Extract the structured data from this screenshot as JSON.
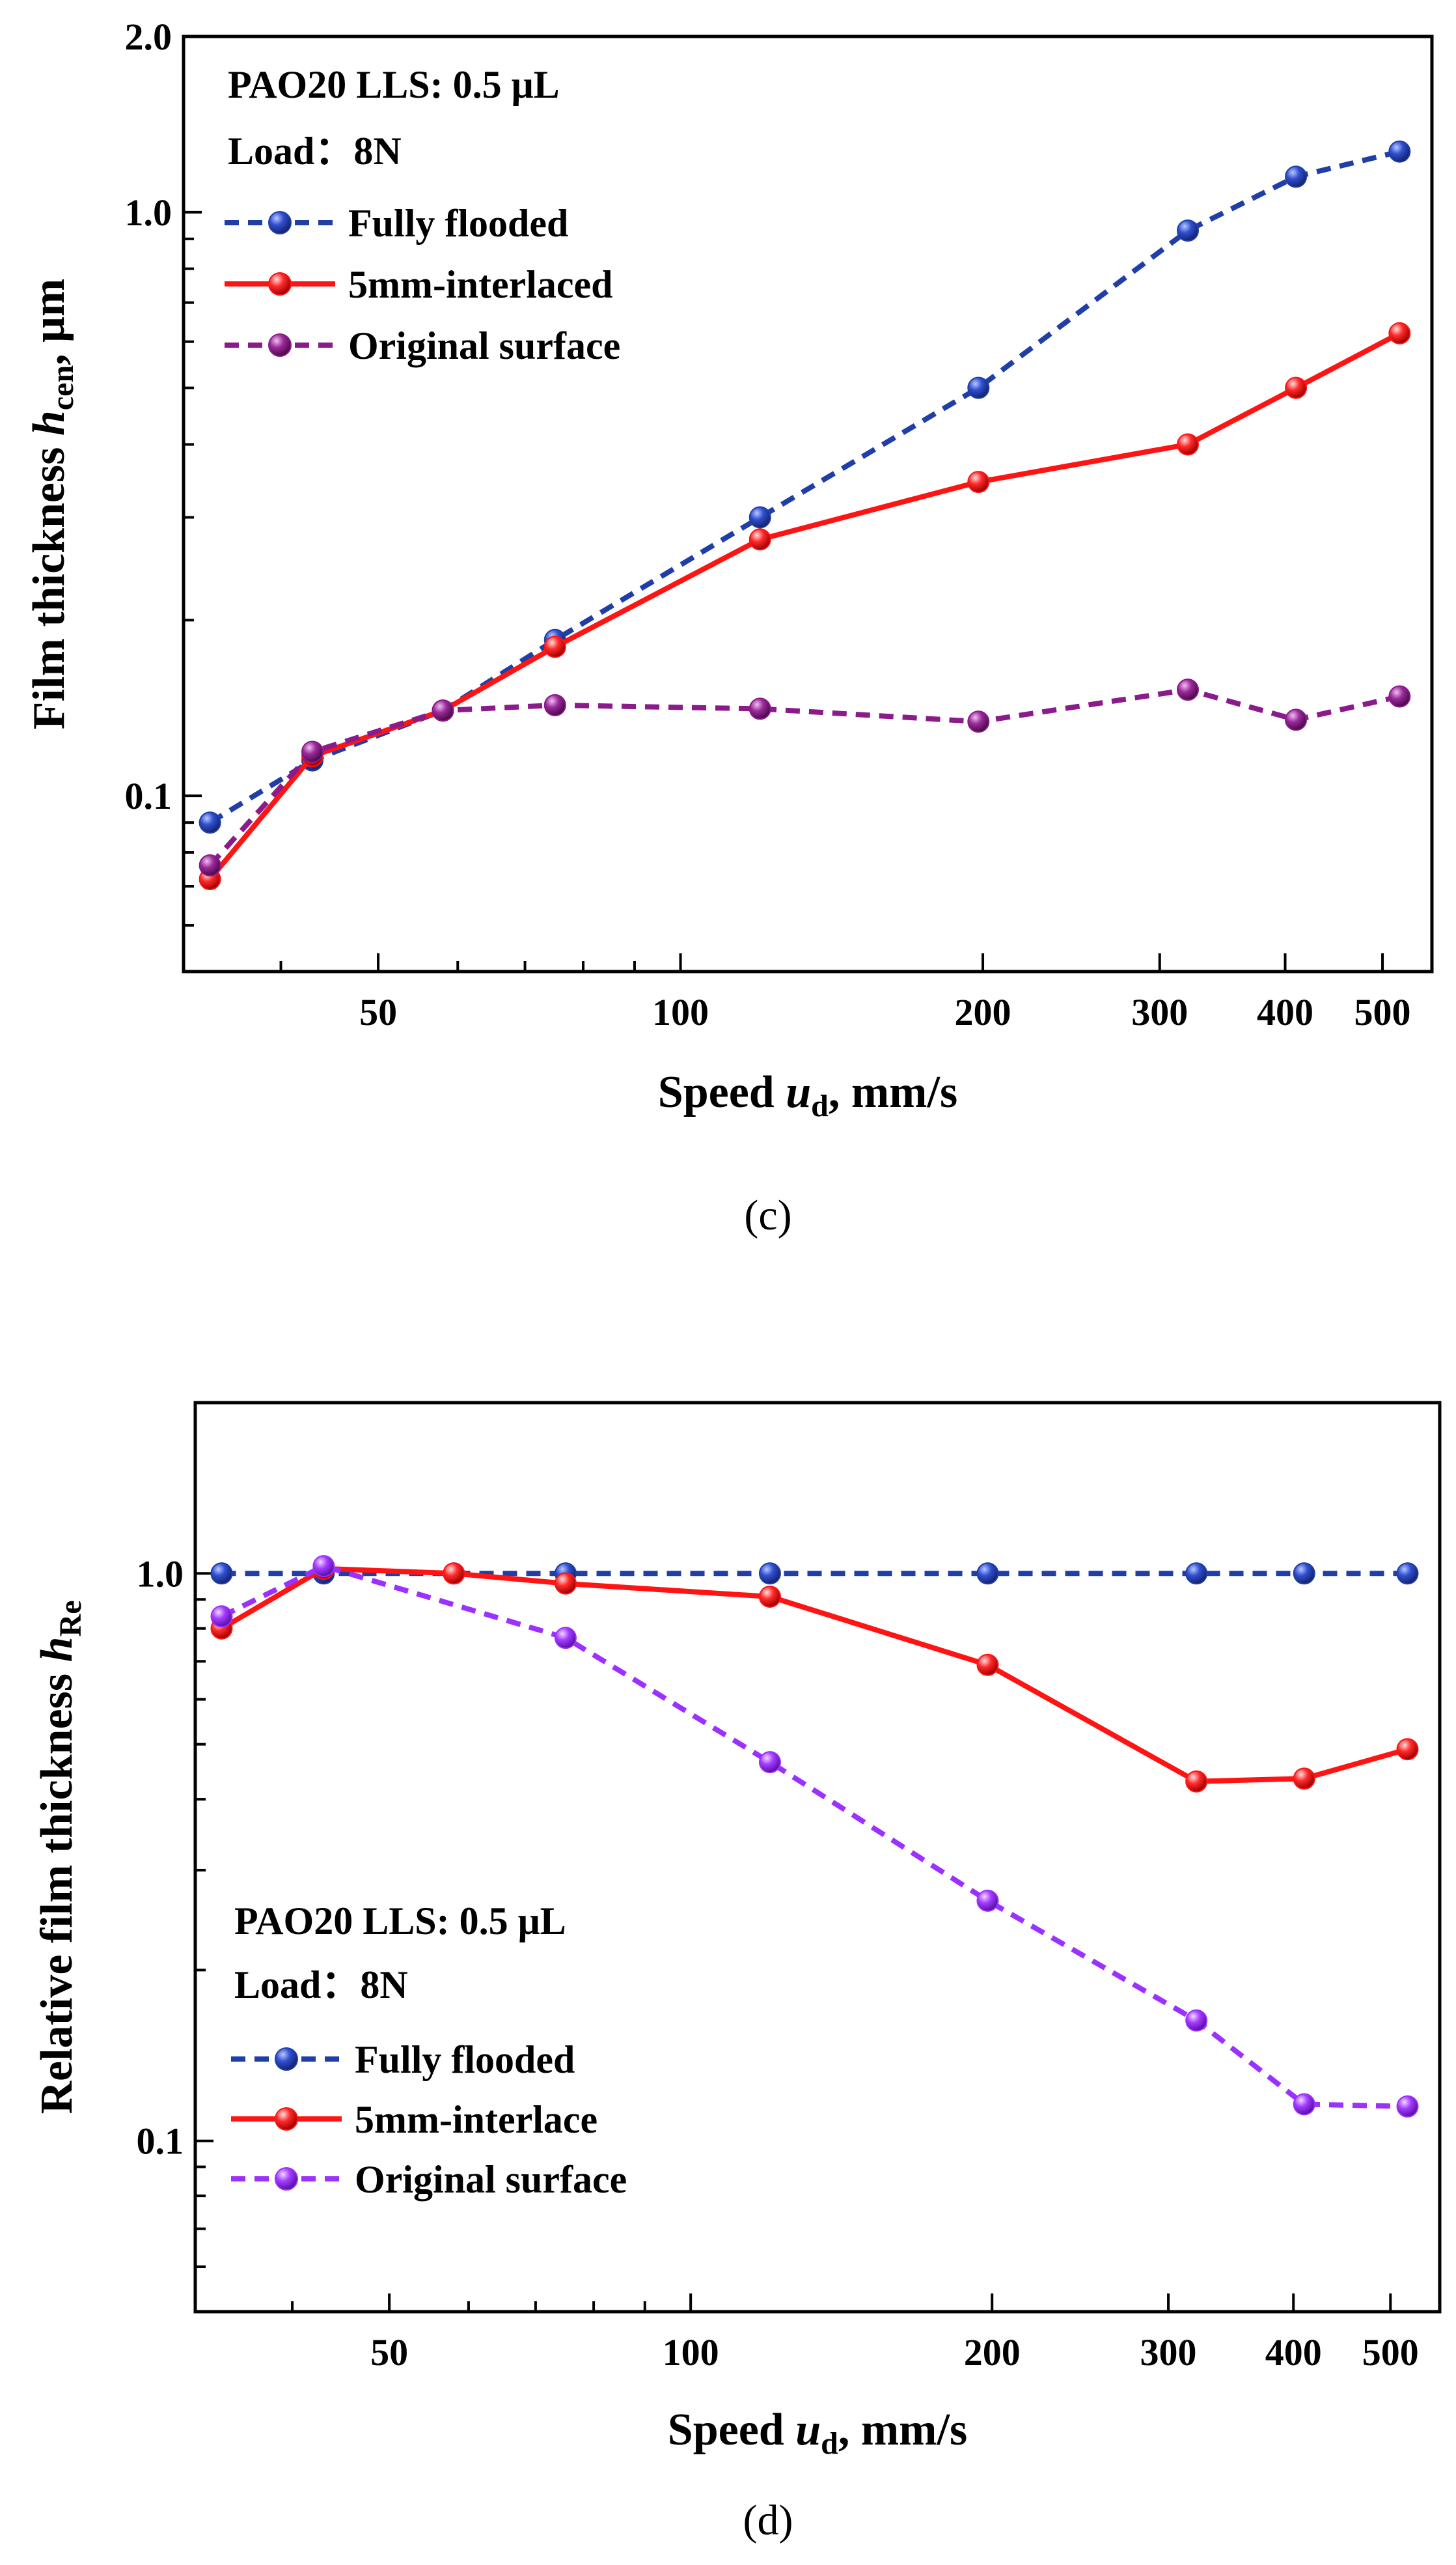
{
  "colors": {
    "fully_flooded": "#1f3ea8",
    "interlaced": "#ff1414",
    "original_c": "#8b1a8b",
    "original_d": "#9b30ff"
  },
  "chart_data": [
    {
      "id": "c",
      "type": "line",
      "panel_label": "(c)",
      "xscale": "log",
      "yscale": "log",
      "xlim": [
        32,
        560
      ],
      "ylim": [
        0.05,
        2.0
      ],
      "xticks": [
        50,
        100,
        200,
        300,
        400,
        500
      ],
      "xtick_labels": [
        "50",
        "100",
        "200",
        "300",
        "400",
        "500"
      ],
      "yticks": [
        0.1,
        1.0,
        2.0
      ],
      "ytick_labels": [
        "0.1",
        "1.0",
        "2.0"
      ],
      "xlabel_main": "Speed ",
      "xlabel_var": "u",
      "xlabel_sub": "d",
      "xlabel_unit": ", mm/s",
      "ylabel_main": "Film thickness ",
      "ylabel_var": "h",
      "ylabel_sub": "cen",
      "ylabel_unit": ", μm",
      "annotation_line1": "PAO20    LLS: 0.5 μL",
      "annotation_line2": "Load：8N",
      "legend_position": "top-left",
      "series": [
        {
          "name": "Fully flooded",
          "style": "dashed",
          "color_key": "fully_flooded",
          "x": [
            34,
            43,
            58,
            75,
            120,
            198,
            320,
            410,
            520
          ],
          "y": [
            0.09,
            0.115,
            0.14,
            0.185,
            0.3,
            0.5,
            0.93,
            1.15,
            1.27
          ]
        },
        {
          "name": "5mm-interlaced",
          "style": "solid",
          "color_key": "interlaced",
          "x": [
            34,
            43,
            58,
            75,
            120,
            198,
            320,
            410,
            520
          ],
          "y": [
            0.072,
            0.117,
            0.14,
            0.18,
            0.275,
            0.345,
            0.4,
            0.5,
            0.62
          ]
        },
        {
          "name": "Original surface",
          "style": "dashed",
          "color_key": "original_c",
          "x": [
            34,
            43,
            58,
            75,
            120,
            198,
            320,
            410,
            520
          ],
          "y": [
            0.076,
            0.119,
            0.14,
            0.143,
            0.141,
            0.134,
            0.152,
            0.135,
            0.148
          ]
        }
      ]
    },
    {
      "id": "d",
      "type": "line",
      "panel_label": "(d)",
      "xscale": "log",
      "yscale": "log",
      "xlim": [
        32,
        560
      ],
      "ylim": [
        0.05,
        2.0
      ],
      "xticks": [
        50,
        100,
        200,
        300,
        400,
        500
      ],
      "xtick_labels": [
        "50",
        "100",
        "200",
        "300",
        "400",
        "500"
      ],
      "yticks": [
        0.1,
        1.0
      ],
      "ytick_labels": [
        "0.1",
        "1.0"
      ],
      "xlabel_main": "Speed ",
      "xlabel_var": "u",
      "xlabel_sub": "d",
      "xlabel_unit": ", mm/s",
      "ylabel_main": "Relative film thickness ",
      "ylabel_var": "h",
      "ylabel_sub": "Re",
      "ylabel_unit": "",
      "annotation_line1": "PAO20    LLS: 0.5 μL",
      "annotation_line2": "Load：8N",
      "legend_position": "lower-left",
      "series": [
        {
          "name": "Fully flooded",
          "style": "dashed",
          "color_key": "fully_flooded",
          "x": [
            34,
            43,
            58,
            75,
            120,
            198,
            320,
            410,
            520
          ],
          "y": [
            1.0,
            1.0,
            1.0,
            1.0,
            1.0,
            1.0,
            1.0,
            1.0,
            1.0
          ]
        },
        {
          "name": "5mm-interlace",
          "style": "solid",
          "color_key": "interlaced",
          "x": [
            34,
            43,
            58,
            75,
            120,
            198,
            320,
            410,
            520
          ],
          "y": [
            0.8,
            1.02,
            1.0,
            0.96,
            0.91,
            0.69,
            0.43,
            0.435,
            0.49
          ]
        },
        {
          "name": "Original surface",
          "style": "dashed",
          "color_key": "original_d",
          "x": [
            34,
            43,
            58,
            75,
            120,
            198,
            320,
            410,
            520
          ],
          "y": [
            0.84,
            1.03,
            null,
            0.77,
            0.465,
            0.265,
            0.163,
            0.116,
            0.115
          ]
        }
      ]
    }
  ]
}
